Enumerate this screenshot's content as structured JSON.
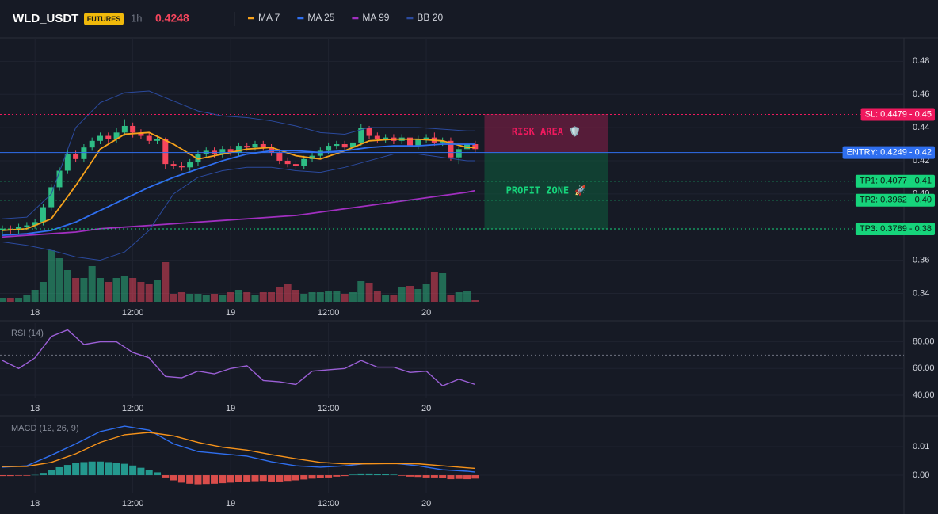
{
  "header": {
    "symbol": "WLD_USDT",
    "badge": "FUTURES",
    "interval": "1h",
    "price": 0.4248
  },
  "chart_data": [
    {
      "type": "candlestick",
      "categories": [
        null,
        null,
        null,
        null,
        "18",
        null,
        null,
        null,
        null,
        null,
        null,
        null,
        null,
        null,
        null,
        null,
        "12:00",
        null,
        null,
        null,
        null,
        null,
        null,
        null,
        null,
        null,
        null,
        null,
        "19",
        null,
        null,
        null,
        null,
        null,
        null,
        null,
        null,
        null,
        null,
        null,
        "12:00",
        null,
        null,
        null,
        null,
        null,
        null,
        null,
        null,
        null,
        null,
        null,
        "20",
        null,
        null,
        null,
        null,
        null,
        null
      ],
      "open": [
        0.378,
        0.379,
        0.378,
        0.38,
        0.381,
        0.383,
        0.392,
        0.404,
        0.414,
        0.424,
        0.421,
        0.428,
        0.432,
        0.435,
        0.433,
        0.437,
        0.441,
        0.437,
        0.435,
        0.432,
        0.433,
        0.418,
        0.417,
        0.416,
        0.419,
        0.424,
        0.426,
        0.424,
        0.427,
        0.425,
        0.429,
        0.428,
        0.43,
        0.428,
        0.425,
        0.42,
        0.418,
        0.417,
        0.421,
        0.423,
        0.426,
        0.429,
        0.43,
        0.428,
        0.431,
        0.44,
        0.435,
        0.433,
        0.434,
        0.432,
        0.434,
        0.429,
        0.433,
        0.434,
        0.431,
        0.432,
        0.422,
        0.427,
        0.43
      ],
      "high": [
        0.381,
        0.381,
        0.382,
        0.383,
        0.385,
        0.394,
        0.406,
        0.416,
        0.427,
        0.426,
        0.43,
        0.434,
        0.437,
        0.437,
        0.44,
        0.445,
        0.443,
        0.439,
        0.437,
        0.435,
        0.434,
        0.42,
        0.419,
        0.421,
        0.426,
        0.428,
        0.428,
        0.429,
        0.429,
        0.431,
        0.431,
        0.432,
        0.432,
        0.43,
        0.427,
        0.422,
        0.42,
        0.423,
        0.425,
        0.428,
        0.431,
        0.432,
        0.432,
        0.433,
        0.442,
        0.441,
        0.437,
        0.436,
        0.436,
        0.436,
        0.435,
        0.435,
        0.436,
        0.437,
        0.434,
        0.434,
        0.429,
        0.432,
        0.432
      ],
      "low": [
        0.376,
        0.376,
        0.376,
        0.378,
        0.379,
        0.381,
        0.39,
        0.402,
        0.412,
        0.419,
        0.419,
        0.426,
        0.43,
        0.431,
        0.431,
        0.435,
        0.434,
        0.433,
        0.43,
        0.43,
        0.415,
        0.415,
        0.414,
        0.414,
        0.417,
        0.422,
        0.422,
        0.422,
        0.423,
        0.423,
        0.426,
        0.426,
        0.426,
        0.423,
        0.418,
        0.416,
        0.415,
        0.415,
        0.419,
        0.421,
        0.424,
        0.427,
        0.426,
        0.426,
        0.429,
        0.433,
        0.431,
        0.431,
        0.43,
        0.43,
        0.427,
        0.427,
        0.431,
        0.429,
        0.429,
        0.42,
        0.418,
        0.425,
        0.425
      ],
      "close": [
        0.379,
        0.378,
        0.38,
        0.381,
        0.383,
        0.392,
        0.404,
        0.414,
        0.424,
        0.421,
        0.428,
        0.432,
        0.435,
        0.433,
        0.437,
        0.441,
        0.437,
        0.435,
        0.432,
        0.433,
        0.418,
        0.417,
        0.416,
        0.419,
        0.424,
        0.426,
        0.424,
        0.427,
        0.425,
        0.429,
        0.428,
        0.43,
        0.428,
        0.425,
        0.42,
        0.418,
        0.417,
        0.421,
        0.423,
        0.426,
        0.429,
        0.43,
        0.428,
        0.431,
        0.44,
        0.435,
        0.433,
        0.434,
        0.432,
        0.434,
        0.429,
        0.433,
        0.434,
        0.431,
        0.432,
        0.422,
        0.427,
        0.43,
        0.427
      ],
      "up_color": "#2ebd85",
      "down_color": "#f6465d",
      "ylim": [
        0.334,
        0.494
      ],
      "yticks": [
        0.34,
        0.36,
        0.38,
        {
          "value": 0.4,
          "label": "0.40"
        },
        0.42,
        0.44,
        0.46,
        0.48
      ],
      "volume": {
        "values": [
          5,
          5,
          5,
          8,
          15,
          25,
          65,
          55,
          40,
          30,
          30,
          45,
          30,
          25,
          30,
          32,
          30,
          25,
          22,
          28,
          50,
          10,
          12,
          10,
          10,
          8,
          10,
          8,
          12,
          15,
          12,
          8,
          12,
          12,
          18,
          22,
          15,
          10,
          12,
          12,
          14,
          14,
          10,
          12,
          26,
          24,
          14,
          8,
          8,
          18,
          20,
          16,
          22,
          38,
          36,
          8,
          12,
          14,
          2
        ],
        "ylim": [
          0,
          100
        ]
      },
      "series": [
        {
          "name": "MA 7",
          "color": "#f7a21b",
          "x": [
            0,
            3,
            6,
            9,
            12,
            15,
            18,
            21,
            24,
            27,
            30,
            33,
            36,
            39,
            42,
            45,
            48,
            51,
            54,
            57,
            58
          ],
          "values": [
            0.378,
            0.379,
            0.385,
            0.405,
            0.427,
            0.436,
            0.437,
            0.43,
            0.421,
            0.424,
            0.427,
            0.428,
            0.423,
            0.421,
            0.426,
            0.432,
            0.433,
            0.433,
            0.432,
            0.428,
            0.428
          ]
        },
        {
          "name": "MA 25",
          "color": "#2f6ff0",
          "x": [
            0,
            3,
            6,
            9,
            12,
            15,
            18,
            21,
            24,
            27,
            30,
            33,
            36,
            39,
            42,
            45,
            48,
            51,
            54,
            57,
            58
          ],
          "values": [
            0.375,
            0.376,
            0.378,
            0.383,
            0.39,
            0.397,
            0.404,
            0.41,
            0.415,
            0.42,
            0.424,
            0.426,
            0.426,
            0.425,
            0.426,
            0.428,
            0.429,
            0.429,
            0.43,
            0.43,
            0.43
          ]
        },
        {
          "name": "MA 99",
          "color": "#a12fc0",
          "x": [
            0,
            3,
            6,
            9,
            12,
            15,
            18,
            21,
            24,
            27,
            30,
            33,
            36,
            39,
            42,
            45,
            48,
            51,
            54,
            57,
            58
          ],
          "values": [
            0.374,
            0.375,
            0.376,
            0.377,
            0.379,
            0.38,
            0.381,
            0.382,
            0.383,
            0.384,
            0.385,
            0.386,
            0.387,
            0.389,
            0.391,
            0.393,
            0.395,
            0.397,
            0.399,
            0.401,
            0.402
          ]
        },
        {
          "name": "BB 20",
          "color": "#2b4a9e",
          "x": [
            0,
            3,
            6,
            9,
            12,
            15,
            18,
            21,
            24,
            27,
            30,
            33,
            36,
            39,
            42,
            45,
            48,
            51,
            54,
            57,
            58
          ],
          "upper": [
            0.385,
            0.386,
            0.4,
            0.44,
            0.455,
            0.461,
            0.462,
            0.456,
            0.45,
            0.447,
            0.446,
            0.444,
            0.441,
            0.437,
            0.436,
            0.44,
            0.44,
            0.44,
            0.439,
            0.438,
            0.438
          ],
          "lower": [
            0.371,
            0.369,
            0.366,
            0.362,
            0.36,
            0.365,
            0.378,
            0.4,
            0.41,
            0.414,
            0.416,
            0.416,
            0.414,
            0.413,
            0.416,
            0.42,
            0.424,
            0.424,
            0.422,
            0.42,
            0.42
          ]
        }
      ],
      "levels": [
        {
          "label": "SL: 0.4479 - 0.45",
          "value": 0.4479,
          "color": "#f0195e",
          "style": "dotted"
        },
        {
          "label": "ENTRY: 0.4249 - 0.42",
          "value": 0.4249,
          "color": "#2f6ff0",
          "style": "solid"
        },
        {
          "label": "TP1: 0.4077 - 0.41",
          "value": 0.4077,
          "color": "#16d47b",
          "style": "dotted"
        },
        {
          "label": "TP2: 0.3962 - 0.40",
          "value": 0.3962,
          "color": "#16d47b",
          "style": "dotted"
        },
        {
          "label": "TP3: 0.3789 - 0.38",
          "value": 0.3789,
          "color": "#16d47b",
          "style": "dotted"
        }
      ],
      "zones": [
        {
          "label": "RISK AREA 🛡️",
          "color": "#8c1f4a",
          "text_color": "#f0195e"
        },
        {
          "label": "PROFIT ZONE 🚀",
          "color": "#0e5e3d",
          "text_color": "#16d47b"
        }
      ]
    },
    {
      "type": "line",
      "title": "RSI (14)",
      "categories": [
        null,
        null,
        null,
        null,
        "18",
        null,
        null,
        null,
        null,
        null,
        null,
        null,
        null,
        null,
        null,
        null,
        "12:00",
        null,
        null,
        null,
        null,
        null,
        null,
        null,
        null,
        null,
        null,
        null,
        "19",
        null,
        null,
        null,
        null,
        null,
        null,
        null,
        null,
        null,
        null,
        null,
        "12:00",
        null,
        null,
        null,
        null,
        null,
        null,
        null,
        null,
        null,
        null,
        null,
        "20",
        null,
        null,
        null,
        null,
        null,
        null
      ],
      "ylim": [
        37.6,
        94
      ],
      "yticks": [
        {
          "value": 40,
          "label": "40.00"
        },
        {
          "value": 60,
          "label": "60.00"
        },
        {
          "value": 80,
          "label": "80.00"
        }
      ],
      "reference_line": 70,
      "series": [
        {
          "color": "#9b5fd6",
          "x": [
            0,
            2,
            4,
            6,
            8,
            10,
            12,
            14,
            16,
            18,
            20,
            22,
            24,
            26,
            28,
            30,
            32,
            34,
            36,
            38,
            40,
            42,
            44,
            46,
            48,
            50,
            52,
            54,
            56,
            58
          ],
          "values": [
            66,
            60,
            68,
            84,
            89,
            78,
            80,
            80,
            72,
            68,
            54,
            53,
            58,
            56,
            60,
            62,
            51,
            50,
            48,
            58,
            59,
            60,
            66,
            61,
            61,
            57,
            58,
            47,
            52,
            48
          ]
        }
      ]
    },
    {
      "type": "line",
      "title": "MACD (12, 26, 9)",
      "categories": [
        null,
        null,
        null,
        null,
        "18",
        null,
        null,
        null,
        null,
        null,
        null,
        null,
        null,
        null,
        null,
        null,
        "12:00",
        null,
        null,
        null,
        null,
        null,
        null,
        null,
        null,
        null,
        null,
        null,
        "19",
        null,
        null,
        null,
        null,
        null,
        null,
        null,
        null,
        null,
        null,
        null,
        "12:00",
        null,
        null,
        null,
        null,
        null,
        null,
        null,
        null,
        null,
        null,
        null,
        "20",
        null,
        null,
        null,
        null,
        null,
        null
      ],
      "ylim": [
        -0.0061,
        0.02
      ],
      "yticks": [
        {
          "value": 0,
          "label": "0.00"
        },
        {
          "value": 0.01,
          "label": "0.01"
        }
      ],
      "histogram": {
        "values": [
          -0.0003,
          -0.0003,
          -0.0002,
          -0.0002,
          0.0001,
          0.0008,
          0.0018,
          0.0028,
          0.0036,
          0.0042,
          0.0046,
          0.0048,
          0.0048,
          0.0046,
          0.0044,
          0.004,
          0.0034,
          0.0026,
          0.0018,
          0.001,
          -0.0008,
          -0.0018,
          -0.0026,
          -0.003,
          -0.0032,
          -0.0031,
          -0.003,
          -0.0028,
          -0.0026,
          -0.0024,
          -0.0022,
          -0.0021,
          -0.002,
          -0.0022,
          -0.0022,
          -0.002,
          -0.0018,
          -0.0015,
          -0.0012,
          -0.001,
          -0.0008,
          -0.0005,
          -0.0003,
          0.0002,
          0.0006,
          0.0006,
          0.0005,
          0.0004,
          0.0002,
          -0.0002,
          -0.0005,
          -0.0006,
          -0.0008,
          -0.0008,
          -0.001,
          -0.0014,
          -0.0013,
          -0.0014,
          -0.0012
        ],
        "up_color": "#26a69a",
        "down_color": "#ef5350"
      },
      "series": [
        {
          "color": "#2f6ff0",
          "x": [
            0,
            3,
            6,
            9,
            12,
            15,
            18,
            21,
            24,
            27,
            30,
            33,
            36,
            39,
            42,
            45,
            48,
            51,
            54,
            57,
            58
          ],
          "values": [
            0.0028,
            0.0033,
            0.007,
            0.011,
            0.0153,
            0.0172,
            0.0158,
            0.011,
            0.0083,
            0.0075,
            0.0067,
            0.0047,
            0.0033,
            0.0028,
            0.0033,
            0.0042,
            0.0042,
            0.0033,
            0.0019,
            0.0014,
            0.0011
          ]
        },
        {
          "color": "#f7931a",
          "x": [
            0,
            3,
            6,
            9,
            12,
            15,
            18,
            21,
            24,
            27,
            30,
            33,
            36,
            39,
            42,
            45,
            48,
            51,
            54,
            57,
            58
          ],
          "values": [
            0.003,
            0.0031,
            0.0045,
            0.0075,
            0.0115,
            0.0142,
            0.015,
            0.0138,
            0.0115,
            0.0098,
            0.0088,
            0.0072,
            0.0058,
            0.0045,
            0.004,
            0.004,
            0.0041,
            0.004,
            0.0033,
            0.0026,
            0.0024
          ]
        }
      ]
    }
  ]
}
